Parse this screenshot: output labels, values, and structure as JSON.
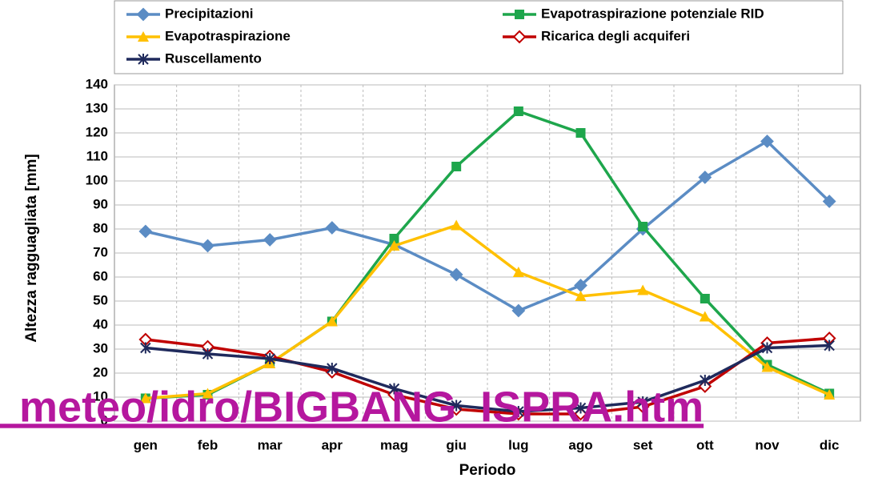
{
  "chart_data": {
    "type": "line",
    "y_label": "Altezza ragguagliata [mm]",
    "x_label": "Periodo",
    "overlay_text": "_meteo/idro/BIGBANG_ISPRA.htm",
    "categories": [
      "gen",
      "feb",
      "mar",
      "apr",
      "mag",
      "giu",
      "lug",
      "ago",
      "set",
      "ott",
      "nov",
      "dic"
    ],
    "series": [
      {
        "name": "Precipitazioni",
        "color": "#5b8cc4",
        "marker": "diamond",
        "values": [
          79,
          73,
          75.5,
          80.5,
          73.5,
          61,
          46,
          56.5,
          80,
          101.5,
          116.5,
          91.5
        ]
      },
      {
        "name": "Evapotraspirazione potenziale RID",
        "color": "#1ea64c",
        "marker": "square",
        "values": [
          9.5,
          11,
          24,
          41.5,
          76,
          106,
          129,
          120,
          81,
          51,
          23.5,
          11.5
        ]
      },
      {
        "name": "Evapotraspirazione",
        "color": "#ffc000",
        "marker": "triangle",
        "values": [
          9.5,
          11.5,
          24,
          41.5,
          73,
          81.5,
          62,
          52,
          54.5,
          43.5,
          22.5,
          11
        ]
      },
      {
        "name": "Ricarica degli acquiferi",
        "color": "#c00000",
        "marker": "open-diamond",
        "values": [
          34,
          31,
          27,
          20.5,
          11,
          5,
          3,
          3,
          6,
          14.5,
          32.5,
          34.5
        ]
      },
      {
        "name": "Ruscellamento",
        "color": "#1f2a5c",
        "marker": "asterisk",
        "values": [
          30.5,
          28,
          26,
          22,
          13.5,
          6.5,
          4,
          5.5,
          8,
          17,
          30.5,
          31.5
        ]
      }
    ],
    "ylim": [
      0,
      140
    ],
    "yticks": [
      0,
      10,
      20,
      30,
      40,
      50,
      60,
      70,
      80,
      90,
      100,
      110,
      120,
      130,
      140
    ],
    "grid": true,
    "legend": "top"
  }
}
